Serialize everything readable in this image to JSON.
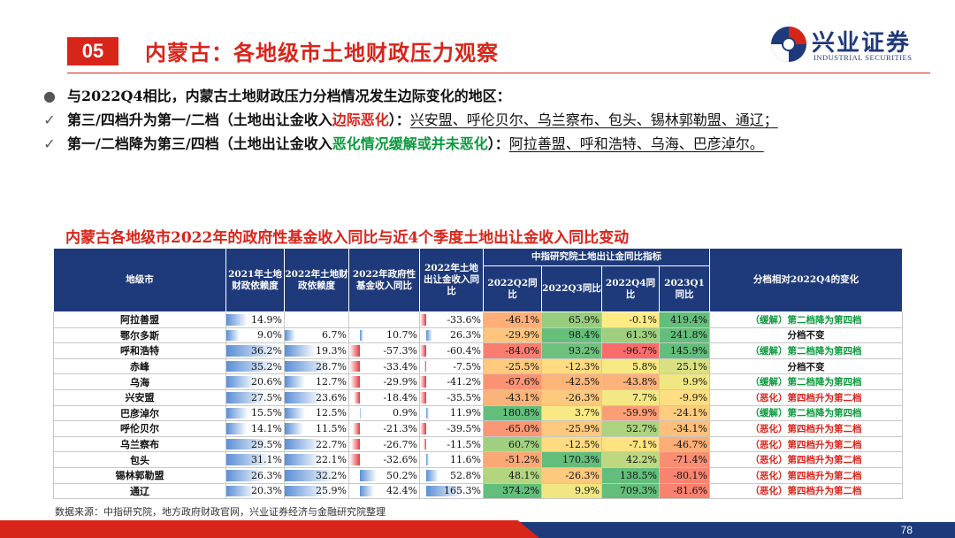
{
  "header": {
    "section_number": "05",
    "title": "内蒙古：各地级市土地财政压力观察",
    "logo_name": "兴业证券",
    "logo_en": "INDUSTRIAL SECURITIES",
    "logo_icon": "swirl-logo-icon"
  },
  "bullets": [
    {
      "mark": "●",
      "icon": "bullet-dot-icon",
      "text": "与2022Q4相比，内蒙古土地财政压力分档情况发生边际变化的地区："
    },
    {
      "mark": "✓",
      "icon": "checkmark-icon",
      "lead": "第三/四档升为第一/二档（土地出让金收入",
      "highlight": "边际恶化",
      "mid": "）：",
      "tail": "兴安盟、呼伦贝尔、乌兰察布、包头、锡林郭勒盟、通辽；"
    },
    {
      "mark": "✓",
      "icon": "checkmark-icon",
      "lead": "第一/二档降为第三/四档（土地出让金收入",
      "highlight": "恶化情况缓解或并未恶化",
      "mid": "）：",
      "tail": "阿拉善盟、呼和浩特、乌海、巴彦淖尔。"
    }
  ],
  "table_title": "内蒙古各地级市2022年的政府性基金收入同比与近4个季度土地出让金收入同比变动",
  "table": {
    "headers": {
      "city": "地级市",
      "c1": "2021年土地财政依赖度",
      "c2": "2022年土地财政依赖度",
      "c3": "2022年政府性基金收入同比",
      "c4": "2022年土地出让金收入同比",
      "group": "中指研究院土地出让金同比指标",
      "q1": "2022Q2同比",
      "q2": "2022Q3同比",
      "q3": "2022Q4同比",
      "q4": "2023Q1同比",
      "change": "分档相对2022Q4的变化"
    },
    "rows": [
      {
        "city": "阿拉善盟",
        "c1": "14.9%",
        "c2": "",
        "c3": "",
        "c4": "-33.6%",
        "q1": "-46.1%",
        "q2": "65.9%",
        "q3": "-0.1%",
        "q4": "419.4%",
        "change": "（缓解）第二档降为第四档"
      },
      {
        "city": "鄂尔多斯",
        "c1": "9.0%",
        "c2": "6.7%",
        "c3": "10.7%",
        "c4": "26.3%",
        "q1": "-29.9%",
        "q2": "98.4%",
        "q3": "61.3%",
        "q4": "241.8%",
        "change": "分档不变"
      },
      {
        "city": "呼和浩特",
        "c1": "36.2%",
        "c2": "19.3%",
        "c3": "-57.3%",
        "c4": "-60.4%",
        "q1": "-84.0%",
        "q2": "93.2%",
        "q3": "-96.7%",
        "q4": "145.9%",
        "change": "（缓解）第二档降为第四档"
      },
      {
        "city": "赤峰",
        "c1": "35.2%",
        "c2": "28.7%",
        "c3": "-33.4%",
        "c4": "-7.5%",
        "q1": "-25.5%",
        "q2": "-12.3%",
        "q3": "5.8%",
        "q4": "25.1%",
        "change": "分档不变"
      },
      {
        "city": "乌海",
        "c1": "20.6%",
        "c2": "12.7%",
        "c3": "-29.9%",
        "c4": "-41.2%",
        "q1": "-67.6%",
        "q2": "-42.5%",
        "q3": "-43.8%",
        "q4": "9.9%",
        "change": "（缓解）第二档降为第四档"
      },
      {
        "city": "兴安盟",
        "c1": "27.5%",
        "c2": "23.6%",
        "c3": "-18.4%",
        "c4": "-35.5%",
        "q1": "-43.1%",
        "q2": "-26.3%",
        "q3": "7.7%",
        "q4": "-9.9%",
        "change": "（恶化）第四档升为第二档"
      },
      {
        "city": "巴彦淖尔",
        "c1": "15.5%",
        "c2": "12.5%",
        "c3": "0.9%",
        "c4": "11.9%",
        "q1": "180.8%",
        "q2": "3.7%",
        "q3": "-59.9%",
        "q4": "-24.1%",
        "change": "（缓解）第二档降为第四档"
      },
      {
        "city": "呼伦贝尔",
        "c1": "14.1%",
        "c2": "11.5%",
        "c3": "-21.3%",
        "c4": "-39.5%",
        "q1": "-65.0%",
        "q2": "-25.9%",
        "q3": "52.7%",
        "q4": "-34.1%",
        "change": "（恶化）第四档升为第二档"
      },
      {
        "city": "乌兰察布",
        "c1": "29.5%",
        "c2": "22.7%",
        "c3": "-26.7%",
        "c4": "-11.5%",
        "q1": "60.7%",
        "q2": "-12.5%",
        "q3": "-7.1%",
        "q4": "-46.7%",
        "change": "（恶化）第四档升为第二档"
      },
      {
        "city": "包头",
        "c1": "31.1%",
        "c2": "22.1%",
        "c3": "-32.6%",
        "c4": "11.6%",
        "q1": "-51.2%",
        "q2": "170.3%",
        "q3": "42.2%",
        "q4": "-71.4%",
        "change": "（恶化）第四档升为第二档"
      },
      {
        "city": "锡林郭勒盟",
        "c1": "26.3%",
        "c2": "32.2%",
        "c3": "50.2%",
        "c4": "52.8%",
        "q1": "48.1%",
        "q2": "-26.3%",
        "q3": "138.5%",
        "q4": "-80.1%",
        "change": "（恶化）第四档升为第二档"
      },
      {
        "city": "通辽",
        "c1": "20.3%",
        "c2": "25.9%",
        "c3": "42.4%",
        "c4": "165.3%",
        "q1": "374.2%",
        "q2": "9.9%",
        "q3": "709.3%",
        "q4": "-81.6%",
        "change": "（恶化）第四档升为第二档"
      }
    ]
  },
  "colors": {
    "brand_red": "#d8251a",
    "brand_navy": "#1f3a7a",
    "bar_blue": "#5b8fd6",
    "bar_red": "#e8383d",
    "heat_red": "#f8696b",
    "heat_yellow": "#ffeb84",
    "heat_green": "#63be7b",
    "note_green": "#0a9a3c"
  },
  "source": "数据来源：中指研究院，地方政府财政官网，兴业证券经济与金融研究院整理",
  "page_number": "78"
}
